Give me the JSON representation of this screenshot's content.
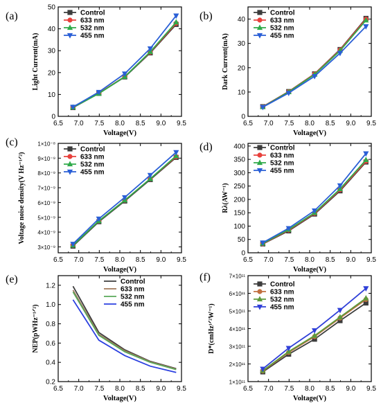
{
  "chart_data": [
    {
      "panel": "(a)",
      "type": "line",
      "ylabel": "Light Current(mA)",
      "xlabel": "Voltage(V)",
      "xlim": [
        6.5,
        9.5
      ],
      "ylim": [
        0,
        50
      ],
      "xticks": [
        "6.5",
        "7.0",
        "7.5",
        "8.0",
        "8.5",
        "9.0",
        "9.5"
      ],
      "yticks": [
        "0",
        "10",
        "20",
        "30",
        "40",
        "50"
      ],
      "x": [
        6.86,
        7.49,
        8.12,
        8.74,
        9.37
      ],
      "legend": "top-left",
      "series": [
        {
          "name": "Control",
          "values": [
            4.0,
            10.5,
            18.0,
            29.0,
            42.0
          ]
        },
        {
          "name": "633 nm",
          "values": [
            4.1,
            10.6,
            18.2,
            29.3,
            42.5
          ]
        },
        {
          "name": "532 nm",
          "values": [
            4.1,
            10.4,
            18.1,
            29.5,
            43.0
          ]
        },
        {
          "name": "455 nm",
          "values": [
            4.3,
            11.1,
            19.5,
            31.0,
            46.0
          ]
        }
      ]
    },
    {
      "panel": "(b)",
      "type": "line",
      "ylabel": "Dark Current(mA)",
      "xlabel": "Voltage(V)",
      "xlim": [
        6.5,
        9.5
      ],
      "ylim": [
        0,
        45
      ],
      "xticks": [
        "6.5",
        "7.0",
        "7.5",
        "8.0",
        "8.5",
        "9.0",
        "9.5"
      ],
      "yticks": [
        "0",
        "10",
        "20",
        "30",
        "40"
      ],
      "x": [
        6.86,
        7.49,
        8.12,
        8.74,
        9.37
      ],
      "legend": "top-left",
      "series": [
        {
          "name": "Control",
          "values": [
            4.0,
            10.2,
            17.5,
            27.5,
            40.3
          ]
        },
        {
          "name": "633 nm",
          "values": [
            4.0,
            10.1,
            17.4,
            27.3,
            40.0
          ]
        },
        {
          "name": "532 nm",
          "values": [
            3.9,
            10.0,
            17.2,
            27.0,
            39.5
          ]
        },
        {
          "name": "455 nm",
          "values": [
            3.8,
            9.6,
            16.5,
            26.0,
            37.0
          ]
        }
      ]
    },
    {
      "panel": "(c)",
      "type": "line",
      "ylabel": "Voltage noise density(V Hz⁻¹ᐟ²)",
      "xlabel": "Voltage(V)",
      "xlim": [
        6.5,
        9.5
      ],
      "ylim": [
        2.6e-09,
        1e-08
      ],
      "xticks": [
        "6.5",
        "7.0",
        "7.5",
        "8.0",
        "8.5",
        "9.0",
        "9.5"
      ],
      "yticks": [
        "3×10⁻⁹",
        "4×10⁻⁹",
        "5×10⁻⁹",
        "6×10⁻⁹",
        "7×10⁻⁹",
        "8×10⁻⁹",
        "9×10⁻⁹",
        "1×10⁻⁸"
      ],
      "x": [
        6.86,
        7.49,
        8.12,
        8.74,
        9.37
      ],
      "legend": "top-left",
      "series": [
        {
          "name": "Control",
          "values": [
            3.05e-09,
            4.7e-09,
            6.1e-09,
            7.55e-09,
            9.05e-09
          ]
        },
        {
          "name": "633 nm",
          "values": [
            3.1e-09,
            4.75e-09,
            6.15e-09,
            7.6e-09,
            9.1e-09
          ]
        },
        {
          "name": "532 nm",
          "values": [
            3.1e-09,
            4.75e-09,
            6.15e-09,
            7.6e-09,
            9.15e-09
          ]
        },
        {
          "name": "455 nm",
          "values": [
            3.2e-09,
            4.9e-09,
            6.35e-09,
            7.85e-09,
            9.4e-09
          ]
        }
      ]
    },
    {
      "panel": "(d)",
      "type": "line",
      "ylabel": "Rλ(AW⁻¹)",
      "xlabel": "Voltage(V)",
      "xlim": [
        6.5,
        9.5
      ],
      "ylim": [
        0,
        410
      ],
      "xticks": [
        "6.5",
        "7.0",
        "7.5",
        "8.0",
        "8.5",
        "9.0",
        "9.5"
      ],
      "yticks": [
        "0",
        "50",
        "100",
        "150",
        "200",
        "250",
        "300",
        "350",
        "400"
      ],
      "x": [
        6.86,
        7.49,
        8.12,
        8.74,
        9.37
      ],
      "legend": "top-left",
      "series": [
        {
          "name": "Control",
          "values": [
            33,
            82,
            145,
            232,
            340
          ]
        },
        {
          "name": "633 nm",
          "values": [
            34,
            85,
            148,
            236,
            343
          ]
        },
        {
          "name": "532 nm",
          "values": [
            35,
            87,
            150,
            239,
            348
          ]
        },
        {
          "name": "455 nm",
          "values": [
            38,
            92,
            158,
            252,
            372
          ]
        }
      ]
    },
    {
      "panel": "(e)",
      "type": "line",
      "ylabel": "NEP(pWHz⁻¹ᐟ²)",
      "xlabel": "Voltage(V)",
      "xlim": [
        6.5,
        9.5
      ],
      "ylim": [
        0.2,
        1.3
      ],
      "xticks": [
        "6.5",
        "7.0",
        "7.5",
        "8.0",
        "8.5",
        "9.0",
        "9.5"
      ],
      "yticks": [
        "0.2",
        "0.4",
        "0.6",
        "0.8",
        "1.0",
        "1.2"
      ],
      "x": [
        6.86,
        7.49,
        8.12,
        8.74,
        9.37
      ],
      "legend": "top-right",
      "series": [
        {
          "name": "Control",
          "values": [
            1.19,
            0.71,
            0.53,
            0.41,
            0.335
          ]
        },
        {
          "name": "633 nm",
          "values": [
            1.15,
            0.69,
            0.52,
            0.405,
            0.33
          ]
        },
        {
          "name": "532 nm",
          "values": [
            1.13,
            0.68,
            0.51,
            0.4,
            0.325
          ]
        },
        {
          "name": "455 nm",
          "values": [
            1.05,
            0.63,
            0.47,
            0.36,
            0.295
          ]
        }
      ]
    },
    {
      "panel": "(f)",
      "type": "line",
      "ylabel": "D*(cmHz¹ᐟ²W⁻¹)",
      "xlabel": "Voltage(V)",
      "xlim": [
        6.5,
        9.5
      ],
      "ylim": [
        100000000000.0,
        700000000000.0
      ],
      "xticks": [
        "6.5",
        "7.0",
        "7.5",
        "8.0",
        "8.5",
        "9.0",
        "9.5"
      ],
      "yticks": [
        "1×10¹¹",
        "2×10¹¹",
        "3×10¹¹",
        "4×10¹¹",
        "5×10¹¹",
        "6×10¹¹",
        "7×10¹¹"
      ],
      "x": [
        6.86,
        7.49,
        8.12,
        8.74,
        9.37
      ],
      "legend": "top-left",
      "series": [
        {
          "name": "Control",
          "values": [
            155000000000.0,
            255000000000.0,
            340000000000.0,
            445000000000.0,
            545000000000.0
          ]
        },
        {
          "name": "633 nm",
          "values": [
            160000000000.0,
            265000000000.0,
            355000000000.0,
            460000000000.0,
            565000000000.0
          ]
        },
        {
          "name": "532 nm",
          "values": [
            162000000000.0,
            270000000000.0,
            360000000000.0,
            465000000000.0,
            572000000000.0
          ]
        },
        {
          "name": "455 nm",
          "values": [
            172000000000.0,
            290000000000.0,
            390000000000.0,
            505000000000.0,
            628000000000.0
          ]
        }
      ]
    }
  ],
  "styles": {
    "colors": {
      "Control": "#3c3c3c",
      "633 nm": "#e8413c",
      "532 nm": "#2faa4a",
      "455 nm": "#2a5fd6"
    },
    "colors_e": {
      "Control": "#3c3c3c",
      "633 nm": "#a0785a",
      "532 nm": "#5aa85a",
      "455 nm": "#2a3fe0"
    },
    "colors_f": {
      "Control": "#3c3c3c",
      "633 nm": "#c07040",
      "532 nm": "#5c9a3c",
      "455 nm": "#3040d8"
    },
    "markers": {
      "Control": "square",
      "633 nm": "circle",
      "532 nm": "triangle-up",
      "455 nm": "triangle-down"
    }
  }
}
